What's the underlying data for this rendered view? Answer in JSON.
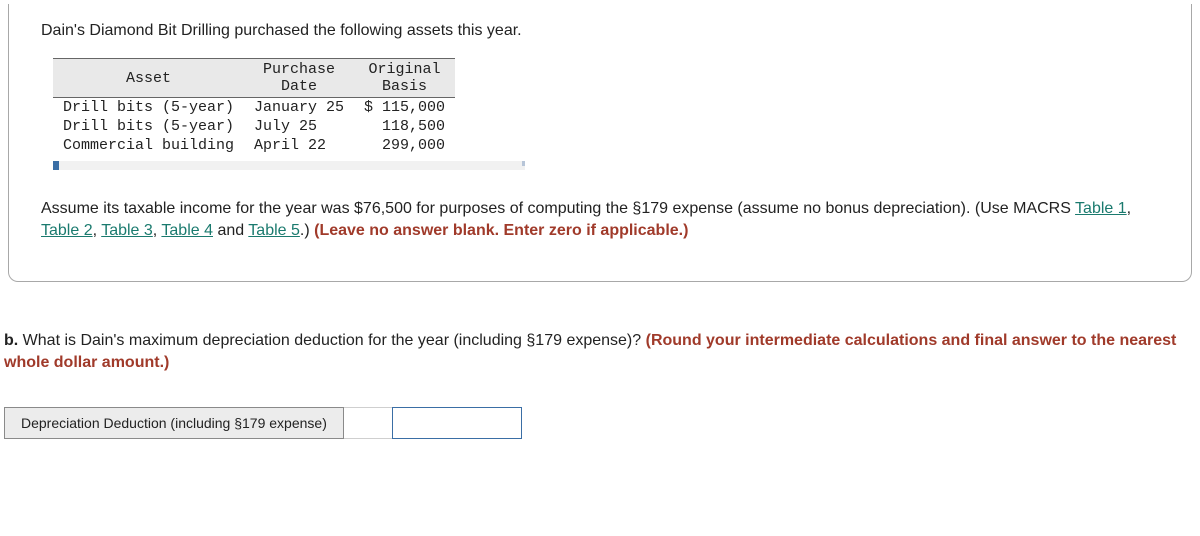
{
  "card": {
    "intro": "Dain's Diamond Bit Drilling purchased the following assets this year.",
    "table": {
      "headers": {
        "asset": "Asset",
        "date": "Purchase\nDate",
        "basis": "Original\nBasis"
      },
      "rows": [
        {
          "asset": "Drill bits (5-year)",
          "date": "January 25",
          "basis": "$ 115,000"
        },
        {
          "asset": "Drill bits (5-year)",
          "date": "July 25",
          "basis": "118,500"
        },
        {
          "asset": "Commercial building",
          "date": "April 22",
          "basis": "299,000"
        }
      ]
    },
    "assumption": {
      "pre": "Assume its taxable income for the year was $76,500 for purposes of computing the §179 expense (assume no bonus depreciation). (Use MACRS ",
      "links": [
        "Table 1",
        "Table 2",
        "Table 3",
        "Table 4",
        "Table 5"
      ],
      "sep": ", ",
      "and": " and ",
      "post_links": ".) ",
      "bold": "(Leave no answer blank. Enter zero if applicable.)"
    }
  },
  "question_b": {
    "label": "b.",
    "text": " What is Dain's maximum depreciation deduction for the year (including §179 expense)? ",
    "bold": "(Round your intermediate calculations and final answer to the nearest whole dollar amount.)"
  },
  "answer": {
    "label": "Depreciation Deduction (including §179 expense)",
    "value": ""
  },
  "colors": {
    "link": "#1a7a6e",
    "bold_red": "#a03a2a",
    "card_border": "#a8a8a8",
    "header_bg": "#e9e9e9",
    "input_border": "#3a6ea5"
  }
}
